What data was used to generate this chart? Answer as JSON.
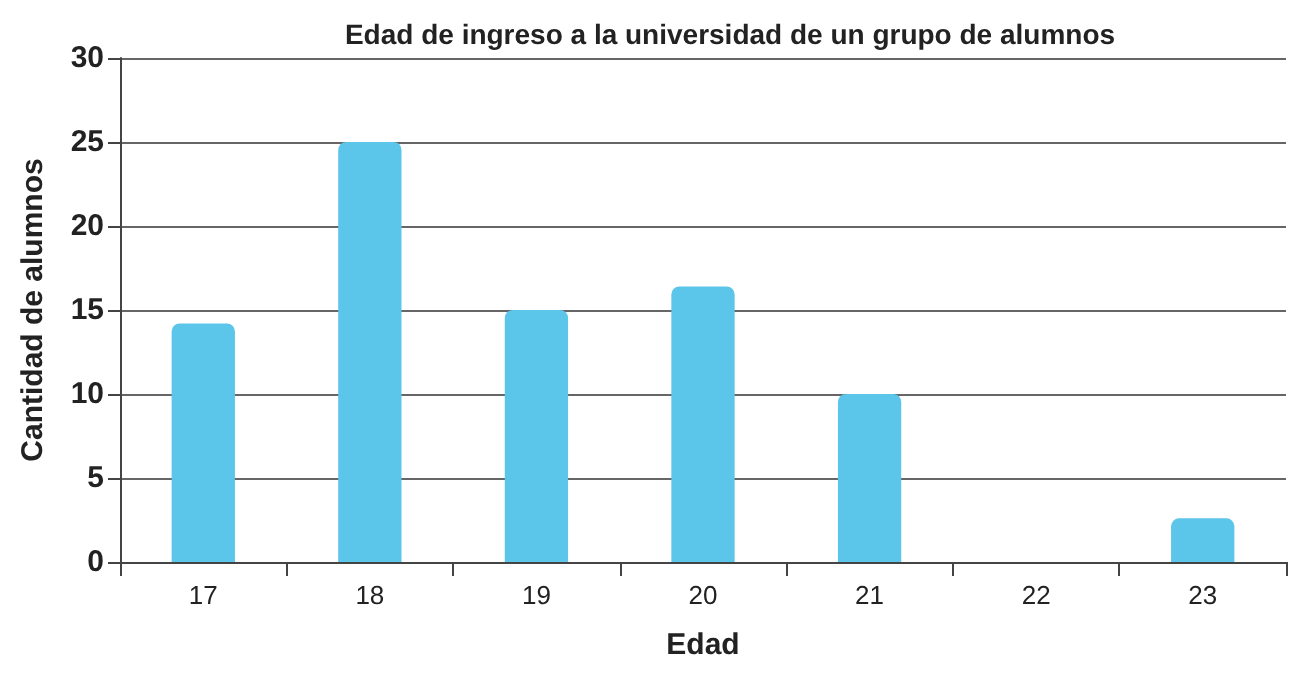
{
  "chart_data": {
    "type": "bar",
    "title": "Edad de ingreso a la universidad de un grupo de alumnos",
    "xlabel": "Edad",
    "ylabel": "Cantidad de alumnos",
    "categories": [
      "17",
      "18",
      "19",
      "20",
      "21",
      "22",
      "23"
    ],
    "values": [
      14.2,
      25,
      15,
      16.4,
      10,
      0,
      2.6
    ],
    "color": "#5bc5ea",
    "ylim": [
      0,
      30
    ],
    "yticks": [
      0,
      5,
      10,
      15,
      20,
      25,
      30
    ],
    "grid": "y"
  }
}
